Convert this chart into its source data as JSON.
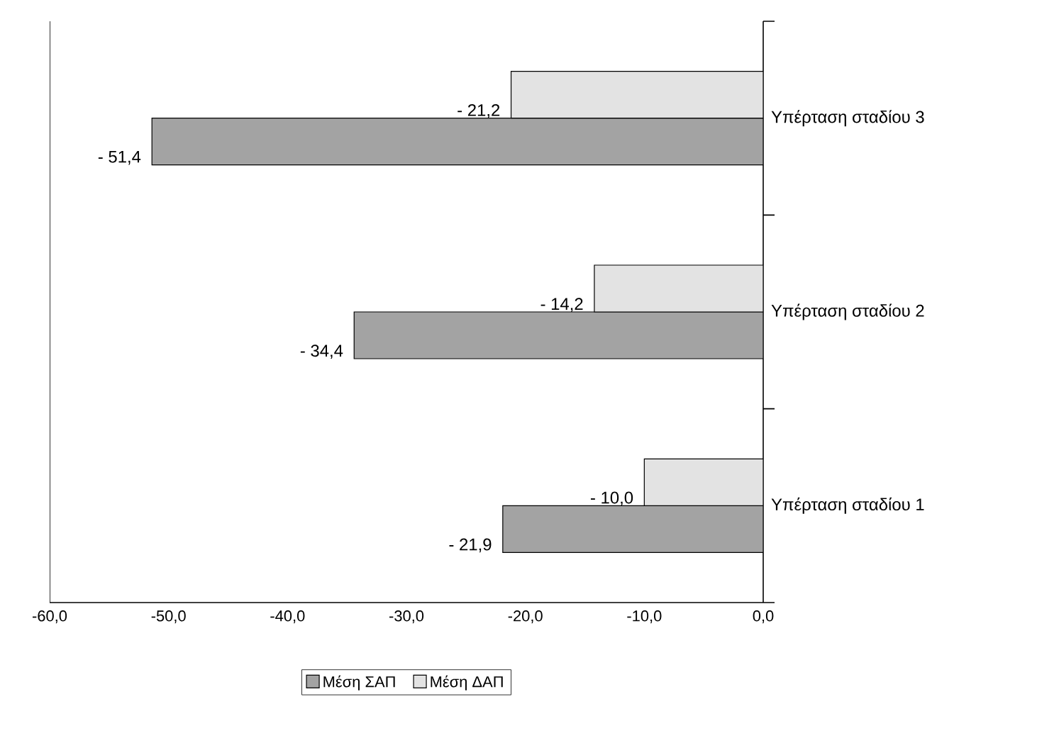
{
  "chart_data": {
    "type": "bar",
    "orientation": "horizontal",
    "categories": [
      "Υπέρταση σταδίου 3",
      "Υπέρταση σταδίου 2",
      "Υπέρταση σταδίου 1"
    ],
    "series": [
      {
        "name": "Μέση ΣΑΠ",
        "color": "#a3a3a3",
        "values": [
          -51.4,
          -34.4,
          -21.9
        ],
        "value_labels": [
          "- 51,4",
          "- 34,4",
          "- 21,9"
        ]
      },
      {
        "name": "Μέση ΔΑΠ",
        "color": "#e3e3e3",
        "values": [
          -21.2,
          -14.2,
          -10.0
        ],
        "value_labels": [
          "- 21,2",
          "- 14,2",
          "- 10,0"
        ]
      }
    ],
    "xlim": [
      -60,
      0
    ],
    "xticks": [
      {
        "value": -60,
        "label": "-60,0"
      },
      {
        "value": -50,
        "label": "-50,0"
      },
      {
        "value": -40,
        "label": "-40,0"
      },
      {
        "value": -30,
        "label": "-30,0"
      },
      {
        "value": -20,
        "label": "-20,0"
      },
      {
        "value": -10,
        "label": "-10,0"
      },
      {
        "value": 0,
        "label": "0,0"
      }
    ],
    "grid": false,
    "legend": "bottom"
  }
}
